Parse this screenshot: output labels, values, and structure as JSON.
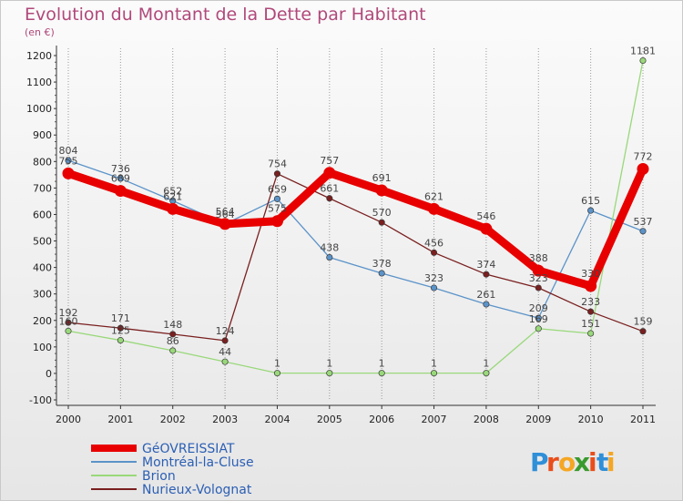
{
  "chart_data": {
    "type": "line",
    "title": "Evolution du Montant de la Dette par Habitant",
    "unit_label": "(en €)",
    "x": [
      "2000",
      "2001",
      "2002",
      "2003",
      "2004",
      "2005",
      "2006",
      "2007",
      "2008",
      "2009",
      "2010",
      "2011"
    ],
    "ylim": [
      -100,
      1200
    ],
    "yticks": [
      -100,
      0,
      100,
      200,
      300,
      400,
      500,
      600,
      700,
      800,
      900,
      1000,
      1100,
      1200
    ],
    "grid": "vertical",
    "legend_position": "bottom-left",
    "series": [
      {
        "name": "GéOVREISSIAT",
        "color": "#e80000",
        "values": [
          755,
          689,
          621,
          564,
          575,
          757,
          691,
          621,
          546,
          388,
          330,
          772
        ],
        "labels": [
          "755",
          "689",
          "621",
          "564",
          "575",
          "757",
          "691",
          "621",
          "546",
          "388",
          "330",
          "772"
        ]
      },
      {
        "name": "Montréal-la-Cluse",
        "color": "#5b93c9",
        "values": [
          804,
          736,
          652,
          564,
          659,
          438,
          378,
          323,
          261,
          209,
          615,
          537
        ],
        "labels": [
          "804",
          "736",
          "652",
          "564",
          "659",
          "438",
          "378",
          "323",
          "261",
          "209",
          "615",
          "537"
        ]
      },
      {
        "name": "Brion",
        "color": "#99d87a",
        "values": [
          160,
          125,
          86,
          44,
          1,
          1,
          1,
          1,
          1,
          169,
          151,
          1181
        ],
        "labels": [
          "160",
          "125",
          "86",
          "44",
          "1",
          "1",
          "1",
          "1",
          "1",
          "169",
          "151",
          "1181"
        ]
      },
      {
        "name": "Nurieux-Volognat",
        "color": "#7a1f1f",
        "values": [
          192,
          171,
          148,
          124,
          754,
          661,
          570,
          456,
          374,
          323,
          233,
          159
        ],
        "labels": [
          "192",
          "171",
          "148",
          "124",
          "754",
          "661",
          "570",
          "456",
          "374",
          "323",
          "233",
          "159"
        ]
      }
    ]
  },
  "logo": {
    "text": "Proxiti",
    "letters": [
      "P",
      "r",
      "o",
      "x",
      "i",
      "t",
      "i"
    ],
    "colors": [
      "#2f8fd8",
      "#e94e1b",
      "#f5a623",
      "#3a9a2e",
      "#e94e1b",
      "#2f8fd8",
      "#f5a623"
    ]
  }
}
